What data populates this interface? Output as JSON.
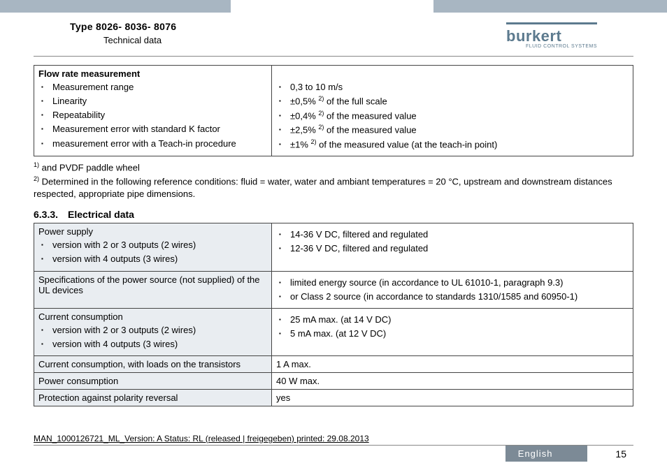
{
  "header": {
    "type_line": "Type 8026- 8036- 8076",
    "subtitle": "Technical data",
    "logo_word": "burkert",
    "logo_tag": "FLUID CONTROL SYSTEMS"
  },
  "flow_table": {
    "header": "Flow rate measurement",
    "left_items": [
      "Measurement range",
      "Linearity",
      "Repeatability",
      "Measurement error with standard K factor",
      "measurement error with a Teach-in procedure"
    ],
    "right_items": [
      "0,3 to 10 m/s",
      "±0,5% <sup class='fn'>2)</sup> of the full scale",
      "±0,4% <sup class='fn'>2)</sup> of the measured value",
      "±2,5% <sup class='fn'>2)</sup> of the measured value",
      "±1% <sup class='fn'>2)</sup> of the measured value (at the teach-in point)"
    ]
  },
  "footnotes": {
    "n1": "<sup class='fn'>1)</sup> and PVDF paddle wheel",
    "n2": "<sup class='fn'>2)</sup> Determined in the following reference conditions: fluid = water, water and ambiant temperatures = 20 °C, upstream and downstream distances respected, appropriate pipe dimensions."
  },
  "section_title": "6.3.3. Electrical data",
  "elec_table": {
    "rows": [
      {
        "left_header": "Power supply",
        "left_items": [
          "version with 2 or 3 outputs (2 wires)",
          "version with 4 outputs (3 wires)"
        ],
        "right_items": [
          "14-36 V DC, filtered and regulated",
          "12-36 V DC, filtered and regulated"
        ]
      },
      {
        "left_text": "Specifications of the power source (not supplied) of the UL devices",
        "right_items": [
          "limited energy source (in accordance to UL 61010-1, paragraph 9.3)",
          "or Class 2 source (in accordance to standards 1310/1585 and 60950-1)"
        ]
      },
      {
        "left_header": "Current consumption",
        "left_items": [
          "version with 2 or 3 outputs (2 wires)",
          "version with 4 outputs (3 wires)"
        ],
        "right_items": [
          "25 mA max. (at 14 V DC)",
          "5 mA max. (at 12 V DC)"
        ]
      },
      {
        "left_text": "Current consumption, with loads on the transistors",
        "right_text": "1 A max."
      },
      {
        "left_text": "Power consumption",
        "right_text": "40 W max."
      },
      {
        "left_text": "Protection against polarity reversal",
        "right_text": "yes"
      }
    ]
  },
  "footer": {
    "man_line": "MAN_1000126721_ML_Version: A Status: RL (released | freigegeben)  printed: 29.08.2013",
    "language": "English",
    "page": "15"
  }
}
